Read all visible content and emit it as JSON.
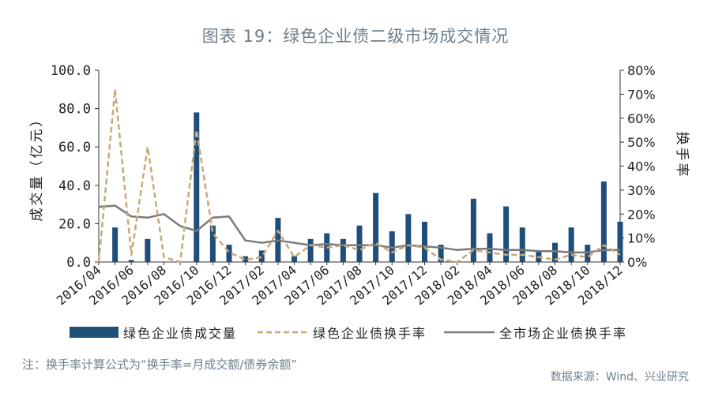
{
  "chart_data": {
    "type": "bar",
    "title": "图表 19：绿色企业债二级市场成交情况",
    "categories": [
      "2016/04",
      "2016/05",
      "2016/06",
      "2016/07",
      "2016/08",
      "2016/09",
      "2016/10",
      "2016/11",
      "2016/12",
      "2017/01",
      "2017/02",
      "2017/03",
      "2017/04",
      "2017/05",
      "2017/06",
      "2017/07",
      "2017/08",
      "2017/09",
      "2017/10",
      "2017/11",
      "2017/12",
      "2018/01",
      "2018/02",
      "2018/03",
      "2018/04",
      "2018/05",
      "2018/06",
      "2018/07",
      "2018/08",
      "2018/09",
      "2018/10",
      "2018/11",
      "2018/12"
    ],
    "x_tick_labels": [
      "2016/04",
      "2016/06",
      "2016/08",
      "2016/10",
      "2016/12",
      "2017/02",
      "2017/04",
      "2017/06",
      "2017/08",
      "2017/10",
      "2017/12",
      "2018/02",
      "2018/04",
      "2018/06",
      "2018/08",
      "2018/10",
      "2018/12"
    ],
    "series": [
      {
        "name": "绿色企业债成交量",
        "kind": "bar",
        "axis": "left",
        "color": "#1f4e79",
        "values": [
          0,
          18,
          1,
          12,
          0,
          0,
          78,
          19,
          9,
          3,
          6,
          23,
          3,
          12,
          15,
          12,
          19,
          36,
          16,
          25,
          21,
          9,
          0,
          33,
          15,
          29,
          18,
          6,
          10,
          18,
          9,
          42,
          21
        ]
      },
      {
        "name": "绿色企业债换手率",
        "kind": "dashed-line",
        "axis": "right",
        "color": "#c8a877",
        "values": [
          0,
          72,
          3,
          48,
          2,
          0,
          55,
          12,
          4,
          1,
          2,
          13,
          2,
          7,
          6,
          7,
          5,
          8,
          4,
          7,
          6,
          1,
          0,
          5,
          4,
          3,
          3,
          2,
          1,
          3,
          2,
          7,
          3
        ]
      },
      {
        "name": "全市场企业债换手率",
        "kind": "line",
        "axis": "right",
        "color": "#7a7a7a",
        "values": [
          23,
          23.5,
          19,
          18.5,
          20,
          15,
          13,
          18.5,
          19,
          9,
          8,
          9,
          8,
          7,
          7.5,
          7,
          7,
          7,
          6,
          7,
          6.5,
          6,
          5,
          5.5,
          5.5,
          5,
          5,
          4.5,
          4.5,
          4,
          4,
          5,
          5
        ]
      }
    ],
    "ylabel_left": "成交量（亿元）",
    "ylabel_right": "换手率",
    "ylim_left": [
      0,
      100
    ],
    "ylim_right": [
      0,
      80
    ],
    "yticks_left": [
      "0.0",
      "20.0",
      "40.0",
      "60.0",
      "80.0",
      "100.0"
    ],
    "yticks_right": [
      "0%",
      "10%",
      "20%",
      "30%",
      "40%",
      "50%",
      "60%",
      "70%",
      "80%"
    ],
    "legend_position": "bottom",
    "grid": false
  },
  "footer": {
    "note": "注：换手率计算公式为“换手率=月成交额/债券余额”",
    "source": "数据来源：Wind、兴业研究"
  }
}
